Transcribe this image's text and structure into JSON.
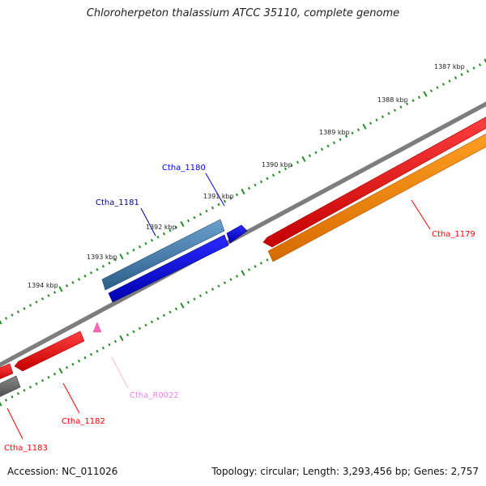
{
  "title": "Chloroherpeton thalassium ATCC 35110, complete genome",
  "footer": {
    "accession": "Accession: NC_011026",
    "summary": "Topology: circular; Length: 3,293,456 bp; Genes: 2,757"
  },
  "ticks": [
    {
      "label": "1387 kbp"
    },
    {
      "label": "1388 kbp"
    },
    {
      "label": "1389 kbp"
    },
    {
      "label": "1390 kbp"
    },
    {
      "label": "1391 kbp"
    },
    {
      "label": "1392 kbp"
    },
    {
      "label": "1393 kbp"
    },
    {
      "label": "1394 kbp"
    }
  ],
  "genes": [
    {
      "label": "Ctha_1179",
      "color": "#ff0000"
    },
    {
      "label": "Ctha_1180",
      "color": "#0000ff"
    },
    {
      "label": "Ctha_1181",
      "color": "#00008b"
    },
    {
      "label": "Ctha_1182",
      "color": "#ff0000"
    },
    {
      "label": "Ctha_1183",
      "color": "#ff0000"
    },
    {
      "label": "Ctha_R0022",
      "color": "#ee82ee"
    }
  ],
  "colors": {
    "cds": "#ff0000",
    "cds_alt": "#ff8c00",
    "gene_blue": "#0000ff",
    "gene_steel": "#4682b4",
    "rna": "#ff69b4",
    "backbone": "#808080",
    "ticks": "#228b22"
  }
}
